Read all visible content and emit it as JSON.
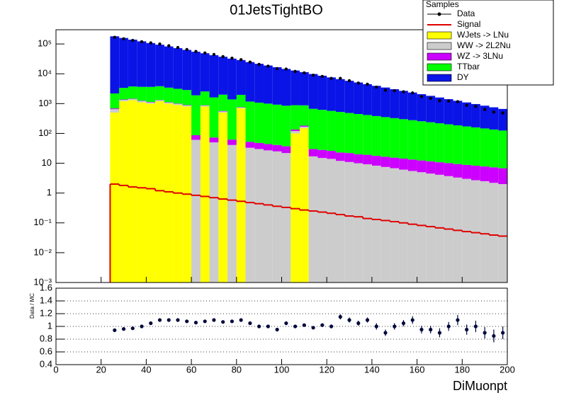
{
  "chart_data": [
    {
      "type": "stacked-histogram",
      "title": "01JetsTightBO",
      "legend_title": "Samples",
      "bins": [
        24,
        28,
        32,
        36,
        40,
        44,
        48,
        52,
        56,
        60,
        64,
        68,
        72,
        76,
        80,
        84,
        88,
        92,
        96,
        100,
        104,
        108,
        112,
        116,
        120,
        124,
        128,
        132,
        136,
        140,
        144,
        148,
        152,
        156,
        160,
        164,
        168,
        172,
        176,
        180,
        184,
        188,
        192,
        196,
        200
      ],
      "xlim": [
        0,
        200
      ],
      "ylim": [
        0.001,
        300000
      ],
      "log_y": true,
      "yticks": [
        {
          "value": 0.001,
          "label": "10⁻³"
        },
        {
          "value": 0.01,
          "label": "10⁻²"
        },
        {
          "value": 0.1,
          "label": "10⁻¹"
        },
        1,
        10,
        {
          "value": 100,
          "label": "10²"
        },
        {
          "value": 1000,
          "label": "10³"
        },
        {
          "value": 10000,
          "label": "10⁴"
        },
        {
          "value": 100000,
          "label": "10⁵"
        }
      ],
      "data": {
        "name": "Data",
        "color": "#000000",
        "values": [
          167000,
          149000,
          132000,
          119000,
          109000,
          99700,
          87100,
          76100,
          65300,
          56000,
          49900,
          44400,
          37700,
          33300,
          29600,
          24700,
          20600,
          18000,
          14900,
          14400,
          12000,
          10700,
          8970,
          8150,
          6990,
          7020,
          5870,
          4890,
          4480,
          3560,
          2800,
          2720,
          2490,
          2280,
          1720,
          1500,
          1250,
          1210,
          1160,
          877,
          807,
          635,
          524,
          484
        ]
      },
      "signal": {
        "name": "Signal",
        "color": "#e00000",
        "values": [
          2.0,
          1.8,
          1.6,
          1.5,
          1.4,
          1.2,
          1.1,
          1.0,
          0.92,
          0.84,
          0.77,
          0.7,
          0.63,
          0.58,
          0.53,
          0.48,
          0.44,
          0.4,
          0.36,
          0.33,
          0.3,
          0.27,
          0.25,
          0.23,
          0.21,
          0.19,
          0.17,
          0.16,
          0.14,
          0.13,
          0.12,
          0.11,
          0.1,
          0.09,
          0.082,
          0.075,
          0.068,
          0.062,
          0.056,
          0.051,
          0.047,
          0.043,
          0.039,
          0.036
        ]
      },
      "series": [
        {
          "name": "WJets -> LNu",
          "color": "#ffff00",
          "values": [
            500,
            1200,
            1300,
            1100,
            1000,
            1200,
            1000,
            900,
            800,
            0,
            800,
            0,
            500,
            0,
            700,
            0,
            0,
            0,
            0,
            0,
            100,
            150,
            0,
            0,
            0,
            0,
            0,
            0,
            0,
            0,
            0,
            0,
            0,
            0,
            0,
            0,
            0,
            0,
            0,
            0,
            0,
            0,
            0,
            0
          ]
        },
        {
          "name": "WW -> 2L2Nu",
          "color": "#cccccc",
          "values": [
            150,
            136,
            123,
            111,
            100,
            91,
            82,
            74,
            67,
            61,
            55,
            50,
            45,
            41,
            37,
            33,
            30,
            27,
            25,
            22,
            20,
            18,
            17,
            15,
            14,
            12,
            11,
            10,
            9.2,
            8.3,
            7.5,
            6.8,
            6.1,
            5.5,
            5.0,
            4.5,
            4.1,
            3.7,
            3.3,
            3.0,
            2.7,
            2.5,
            2.2,
            2.0
          ]
        },
        {
          "name": "WZ -> 3LNu",
          "color": "#cc00ff",
          "values": [
            40,
            38,
            36,
            35,
            33,
            31,
            30,
            28,
            27,
            26,
            24,
            23,
            22,
            21,
            20,
            19,
            18,
            17,
            16,
            15,
            15,
            14,
            13,
            13,
            12,
            11,
            11,
            10,
            10,
            9.4,
            9,
            8.6,
            8.2,
            7.8,
            7.4,
            7.1,
            6.7,
            6.4,
            6.1,
            5.8,
            5.6,
            5.3,
            5.1,
            4.8
          ]
        },
        {
          "name": "TTbar",
          "color": "#00ff00",
          "values": [
            1500,
            2000,
            2300,
            2400,
            2500,
            2500,
            2310,
            2130,
            1960,
            1810,
            1670,
            1540,
            1430,
            1320,
            1210,
            1120,
            1030,
            953,
            880,
            812,
            749,
            692,
            638,
            589,
            544,
            502,
            463,
            428,
            395,
            364,
            336,
            310,
            286,
            264,
            244,
            225,
            208,
            192,
            177,
            163,
            151,
            139,
            128,
            118
          ]
        },
        {
          "name": "DY",
          "color": "#0a14e6",
          "values": [
            178000,
            155500,
            135900,
            118700,
            103700,
            90630,
            79200,
            69200,
            60470,
            52840,
            46170,
            40340,
            35250,
            30800,
            26910,
            23520,
            20550,
            17960,
            15690,
            13710,
            11980,
            10470,
            9148,
            7994,
            6985,
            6104,
            5333,
            4660,
            4072,
            3558,
            3109,
            2717,
            2374,
            2074,
            1813,
            1584,
            1384,
            1209,
            1057,
            923,
            807,
            705,
            616,
            538
          ]
        }
      ]
    },
    {
      "type": "ratio",
      "xlabel": "DiMuonpt",
      "ylabel": "Data / MC",
      "x": [
        26,
        30,
        34,
        38,
        42,
        46,
        50,
        54,
        58,
        62,
        66,
        70,
        74,
        78,
        82,
        86,
        90,
        94,
        98,
        102,
        106,
        110,
        114,
        118,
        122,
        126,
        130,
        134,
        138,
        142,
        146,
        150,
        154,
        158,
        162,
        166,
        170,
        174,
        178,
        182,
        186,
        190,
        194,
        198
      ],
      "values": [
        0.94,
        0.96,
        0.97,
        1.0,
        1.05,
        1.1,
        1.1,
        1.1,
        1.08,
        1.06,
        1.08,
        1.1,
        1.07,
        1.08,
        1.1,
        1.05,
        1.0,
        1.0,
        0.95,
        1.05,
        1.0,
        1.02,
        0.98,
        1.02,
        1.0,
        1.15,
        1.1,
        1.05,
        1.1,
        1.0,
        0.9,
        1.0,
        1.05,
        1.1,
        0.95,
        0.95,
        0.9,
        1.0,
        1.1,
        0.95,
        1.0,
        0.9,
        0.85,
        0.9
      ],
      "errors": [
        0.01,
        0.01,
        0.01,
        0.01,
        0.01,
        0.01,
        0.01,
        0.01,
        0.01,
        0.01,
        0.01,
        0.01,
        0.01,
        0.01,
        0.01,
        0.02,
        0.02,
        0.02,
        0.02,
        0.02,
        0.02,
        0.02,
        0.02,
        0.03,
        0.03,
        0.04,
        0.04,
        0.04,
        0.04,
        0.05,
        0.05,
        0.05,
        0.05,
        0.06,
        0.06,
        0.06,
        0.07,
        0.07,
        0.08,
        0.08,
        0.09,
        0.09,
        0.1,
        0.1
      ],
      "xlim": [
        0,
        200
      ],
      "xticks": [
        0,
        20,
        40,
        60,
        80,
        100,
        120,
        140,
        160,
        180,
        200
      ],
      "ylim": [
        0.4,
        1.6
      ],
      "yticks": [
        0.4,
        0.6,
        0.8,
        1,
        1.2,
        1.4,
        1.6
      ],
      "grid": true
    }
  ]
}
